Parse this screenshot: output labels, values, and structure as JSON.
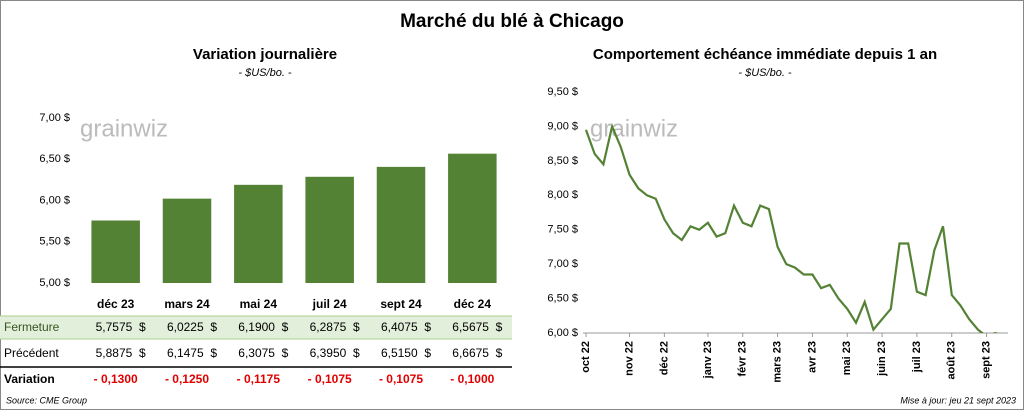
{
  "title": "Marché du blé à Chicago",
  "watermark": "grainwiz",
  "chart_data": [
    {
      "type": "bar",
      "title": "Variation journalière",
      "subtitle": "- $US/bo. -",
      "categories": [
        "déc 23",
        "mars 24",
        "mai 24",
        "juil 24",
        "sept 24",
        "déc 24"
      ],
      "values": [
        5.7575,
        6.0225,
        6.19,
        6.2875,
        6.4075,
        6.5675
      ],
      "value_labels": [
        "5,7575  $",
        "6,0225  $",
        "6,1900  $",
        "6,2875  $",
        "6,4075  $",
        "6,5675  $"
      ],
      "color": "#548235",
      "ylim": [
        5,
        7.2
      ],
      "yticks": [
        {
          "value": 5,
          "label": "5,00 $"
        },
        {
          "value": 5.5,
          "label": "5,50 $"
        },
        {
          "value": 6,
          "label": "6,00 $"
        },
        {
          "value": 6.5,
          "label": "6,50 $"
        },
        {
          "value": 7,
          "label": "7,00 $"
        }
      ]
    },
    {
      "type": "line",
      "title": "Comportement échéance immédiate depuis 1 an",
      "subtitle": "- $US/bo. -",
      "categories": [
        "oct 22",
        null,
        null,
        null,
        null,
        "nov 22",
        null,
        null,
        null,
        "déc 22",
        null,
        null,
        null,
        null,
        "janv 23",
        null,
        null,
        null,
        "févr 23",
        null,
        null,
        null,
        "mars 23",
        null,
        null,
        null,
        "avr 23",
        null,
        null,
        null,
        "mai 23",
        null,
        null,
        null,
        "juin 23",
        null,
        null,
        null,
        "juil 23",
        null,
        null,
        null,
        "août 23",
        null,
        null,
        null,
        "sept 23",
        null,
        null
      ],
      "series": [
        {
          "name": "Échéance immédiate",
          "color": "#548235",
          "values": [
            8.95,
            8.6,
            8.45,
            9.0,
            8.7,
            8.3,
            8.1,
            8.0,
            7.95,
            7.65,
            7.45,
            7.35,
            7.55,
            7.5,
            7.6,
            7.4,
            7.45,
            7.85,
            7.6,
            7.55,
            7.85,
            7.8,
            7.25,
            7.0,
            6.95,
            6.85,
            6.85,
            6.65,
            6.7,
            6.5,
            6.35,
            6.15,
            6.45,
            6.05,
            6.2,
            6.35,
            7.3,
            7.3,
            6.6,
            6.55,
            7.2,
            7.55,
            6.55,
            6.4,
            6.2,
            6.05,
            5.95,
            6.0,
            5.95
          ]
        }
      ],
      "ylim": [
        6,
        9.5
      ],
      "yticks": [
        {
          "value": 6,
          "label": "6,00 $"
        },
        {
          "value": 6.5,
          "label": "6,50 $"
        },
        {
          "value": 7,
          "label": "7,00 $"
        },
        {
          "value": 7.5,
          "label": "7,50 $"
        },
        {
          "value": 8,
          "label": "8,00 $"
        },
        {
          "value": 8.5,
          "label": "8,50 $"
        },
        {
          "value": 9,
          "label": "9,00 $"
        },
        {
          "value": 9.5,
          "label": "9,50 $"
        }
      ]
    }
  ],
  "table": {
    "rows": [
      {
        "label": "Fermeture"
      },
      {
        "label": "Précédent",
        "cells": [
          "5,8875  $",
          "6,1475  $",
          "6,3075  $",
          "6,3950  $",
          "6,5150  $",
          "6,6675  $"
        ]
      },
      {
        "label": "Variation",
        "cells": [
          "- 0,1300",
          "- 0,1250",
          "- 0,1175",
          "- 0,1075",
          "- 0,1075",
          "- 0,1000"
        ]
      }
    ]
  },
  "source": "Source: CME Group",
  "updated": "Mise à jour: jeu 21 sept 2023"
}
